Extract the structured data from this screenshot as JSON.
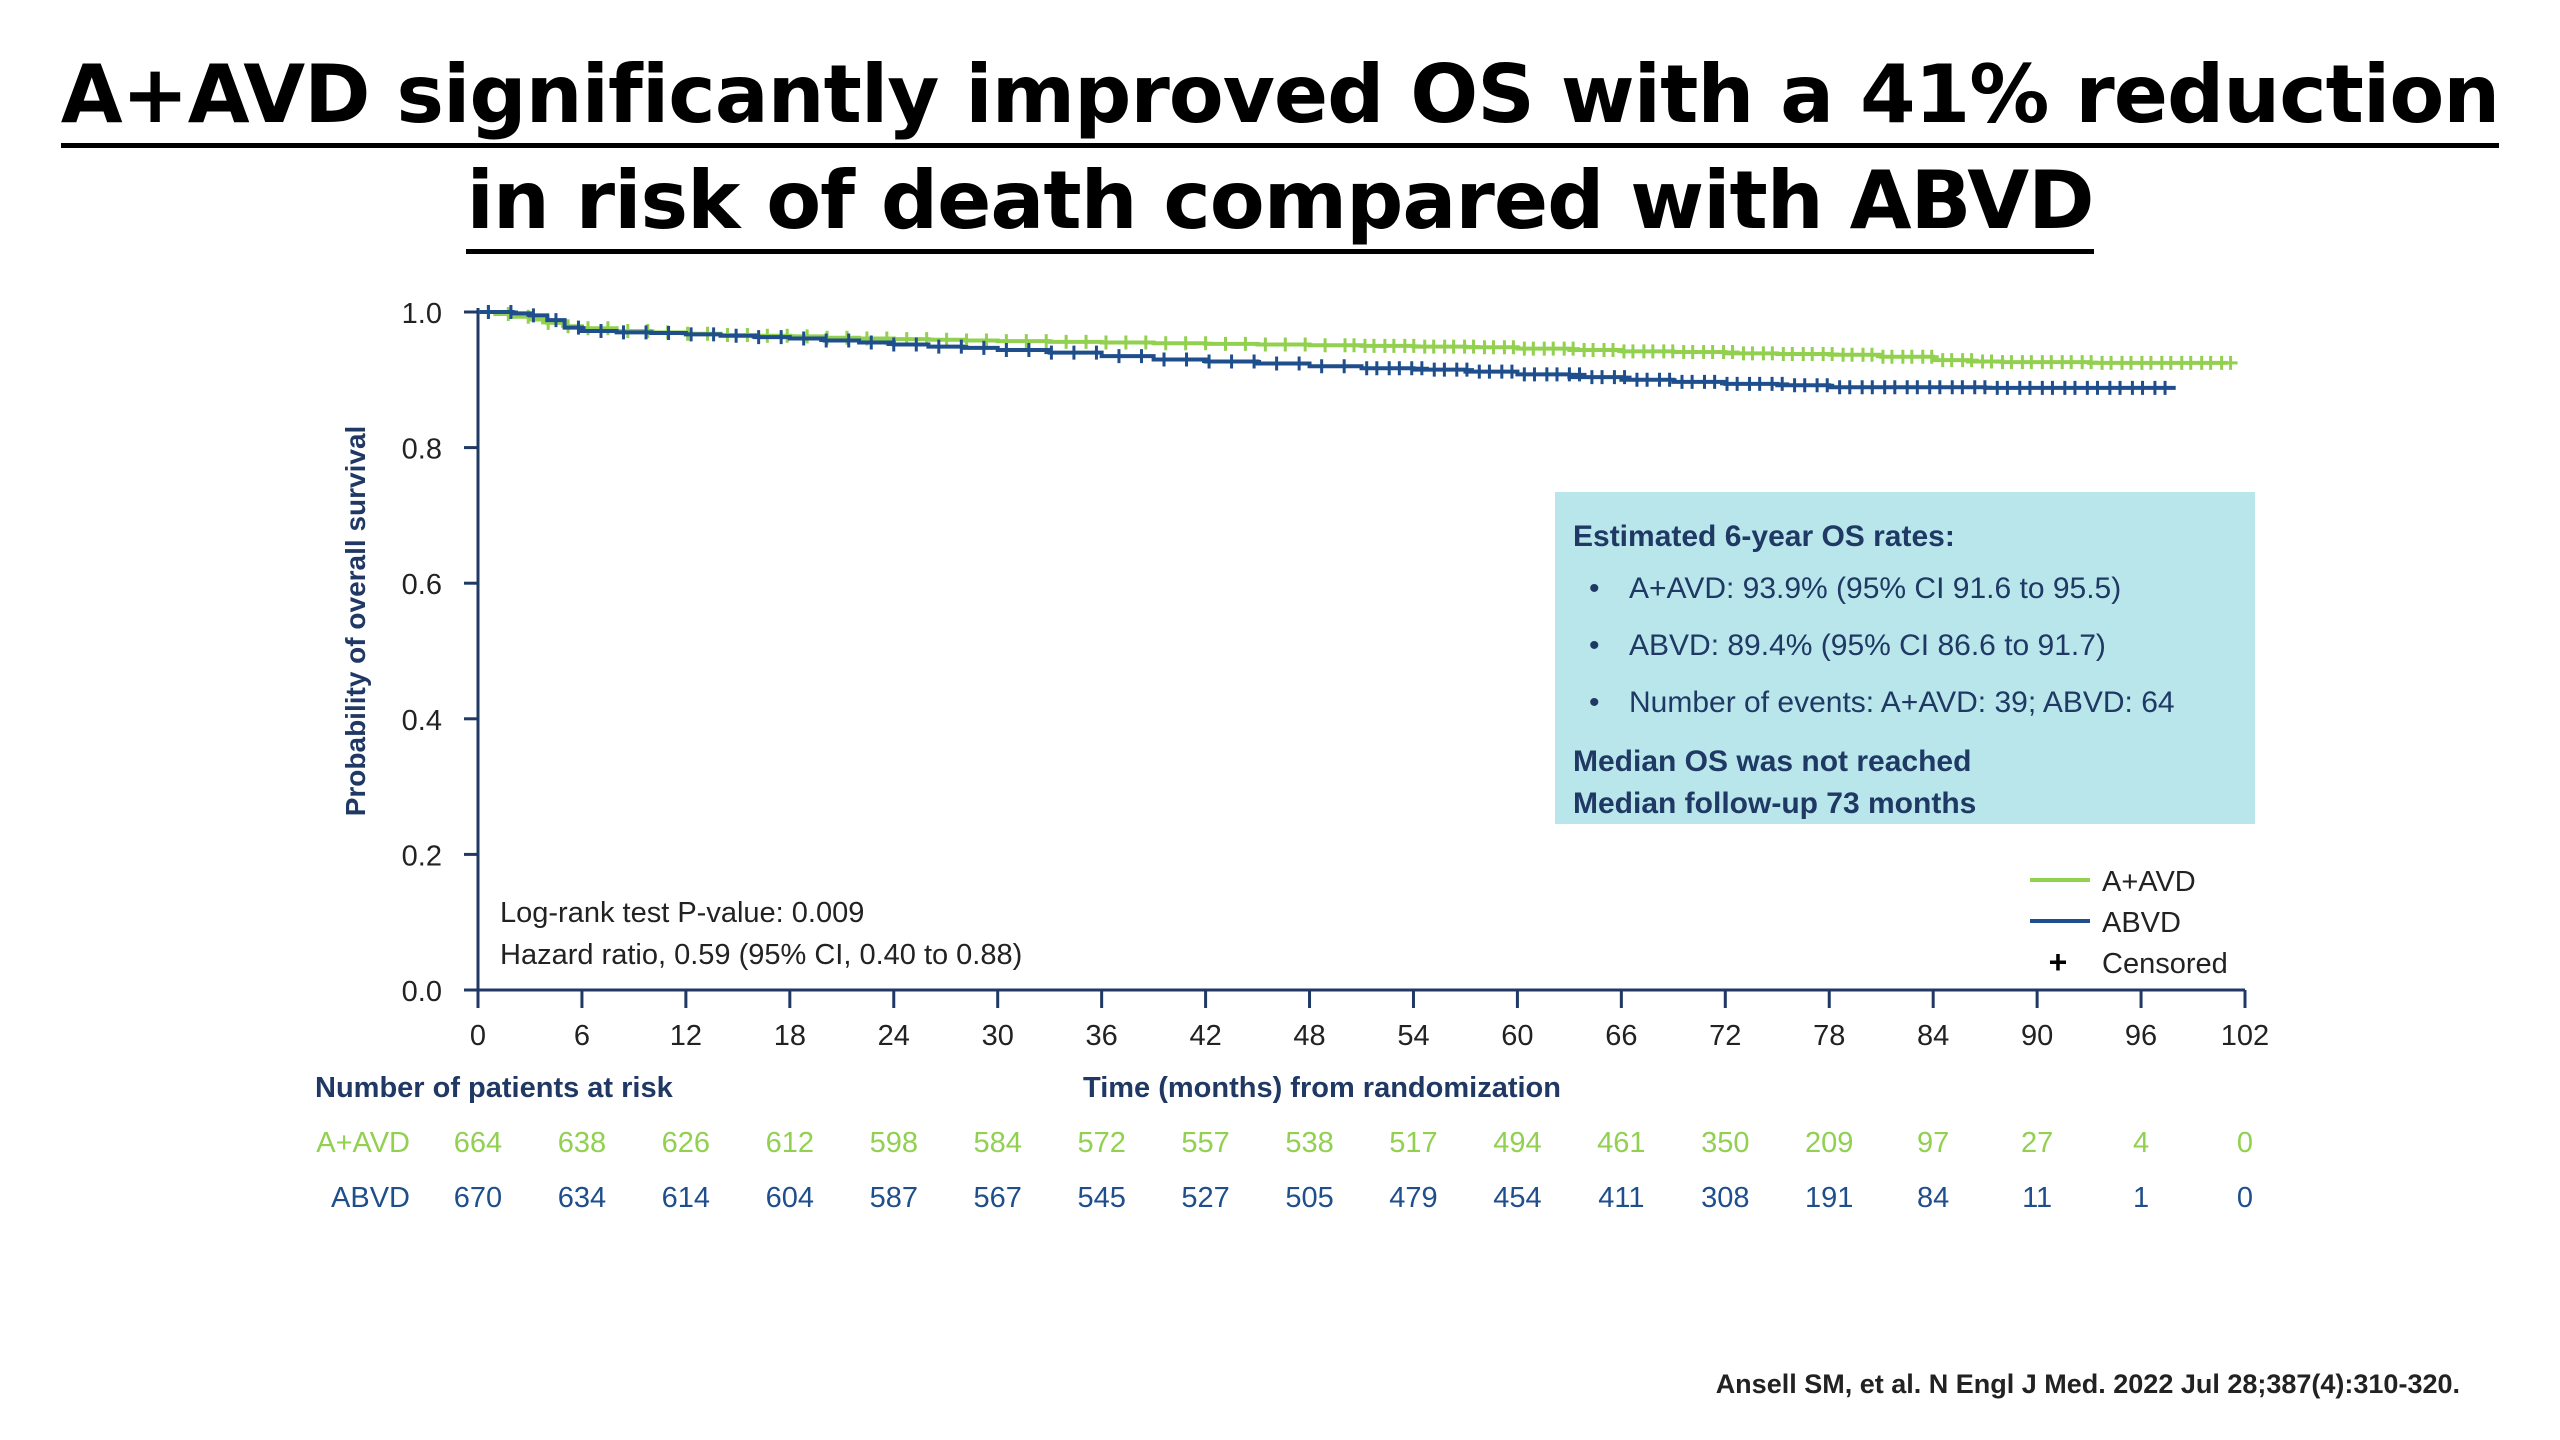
{
  "title": {
    "line1": "A+AVD significantly improved OS with a 41% reduction",
    "line2": "in risk of death compared with ABVD"
  },
  "chart_data": {
    "type": "line",
    "subtype": "kaplan-meier",
    "ylabel": "Probability of overall survival",
    "xlabel": "Time (months) from randomization",
    "ylim": [
      0.0,
      1.0
    ],
    "xlim": [
      0,
      102
    ],
    "yticks": [
      "0.0",
      "0.2",
      "0.4",
      "0.6",
      "0.8",
      "1.0"
    ],
    "xticks": [
      "0",
      "6",
      "12",
      "18",
      "24",
      "30",
      "36",
      "42",
      "48",
      "54",
      "60",
      "66",
      "72",
      "78",
      "84",
      "90",
      "96",
      "102"
    ],
    "series": [
      {
        "name": "A+AVD",
        "color": "#92d050",
        "points": [
          [
            0,
            1.0
          ],
          [
            1,
            0.997
          ],
          [
            2,
            0.993
          ],
          [
            3,
            0.989
          ],
          [
            4,
            0.984
          ],
          [
            5,
            0.979
          ],
          [
            6,
            0.976
          ],
          [
            8,
            0.972
          ],
          [
            10,
            0.97
          ],
          [
            12,
            0.968
          ],
          [
            14,
            0.966
          ],
          [
            16,
            0.965
          ],
          [
            18,
            0.964
          ],
          [
            20,
            0.962
          ],
          [
            22,
            0.961
          ],
          [
            24,
            0.96
          ],
          [
            26,
            0.959
          ],
          [
            28,
            0.958
          ],
          [
            30,
            0.957
          ],
          [
            33,
            0.956
          ],
          [
            36,
            0.955
          ],
          [
            39,
            0.954
          ],
          [
            42,
            0.953
          ],
          [
            45,
            0.952
          ],
          [
            48,
            0.951
          ],
          [
            51,
            0.95
          ],
          [
            54,
            0.949
          ],
          [
            57,
            0.948
          ],
          [
            60,
            0.946
          ],
          [
            63,
            0.944
          ],
          [
            66,
            0.942
          ],
          [
            69,
            0.941
          ],
          [
            72,
            0.939
          ],
          [
            75,
            0.938
          ],
          [
            78,
            0.937
          ],
          [
            81,
            0.934
          ],
          [
            84,
            0.929
          ],
          [
            86,
            0.927
          ],
          [
            88,
            0.926
          ],
          [
            90,
            0.926
          ],
          [
            93,
            0.925
          ],
          [
            96,
            0.925
          ],
          [
            101,
            0.925
          ]
        ]
      },
      {
        "name": "ABVD",
        "color": "#1f4e8c",
        "points": [
          [
            0,
            1.0
          ],
          [
            1,
            1.0
          ],
          [
            2,
            0.998
          ],
          [
            3,
            0.995
          ],
          [
            4,
            0.988
          ],
          [
            5,
            0.977
          ],
          [
            6,
            0.972
          ],
          [
            8,
            0.97
          ],
          [
            10,
            0.969
          ],
          [
            12,
            0.967
          ],
          [
            14,
            0.965
          ],
          [
            16,
            0.963
          ],
          [
            18,
            0.961
          ],
          [
            20,
            0.958
          ],
          [
            22,
            0.955
          ],
          [
            24,
            0.952
          ],
          [
            26,
            0.949
          ],
          [
            28,
            0.947
          ],
          [
            30,
            0.944
          ],
          [
            33,
            0.94
          ],
          [
            36,
            0.935
          ],
          [
            39,
            0.93
          ],
          [
            42,
            0.927
          ],
          [
            45,
            0.924
          ],
          [
            48,
            0.92
          ],
          [
            51,
            0.917
          ],
          [
            54,
            0.915
          ],
          [
            57,
            0.912
          ],
          [
            60,
            0.908
          ],
          [
            63,
            0.904
          ],
          [
            66,
            0.9
          ],
          [
            69,
            0.897
          ],
          [
            72,
            0.894
          ],
          [
            75,
            0.892
          ],
          [
            78,
            0.889
          ],
          [
            81,
            0.889
          ],
          [
            84,
            0.889
          ],
          [
            87,
            0.888
          ],
          [
            90,
            0.888
          ],
          [
            93,
            0.888
          ],
          [
            98,
            0.888
          ]
        ]
      }
    ],
    "legend": [
      {
        "label": "A+AVD",
        "color": "#92d050",
        "kind": "line"
      },
      {
        "label": "ABVD",
        "color": "#1f4e8c",
        "kind": "line"
      },
      {
        "label": "Censored",
        "color": "#000000",
        "kind": "cross",
        "glyph": "+"
      }
    ],
    "annotations": [
      "Log-rank test P-value: 0.009",
      "Hazard ratio, 0.59 (95% CI, 0.40 to 0.88)"
    ],
    "at_risk": {
      "title": "Number of patients at risk",
      "rows": [
        {
          "label": "A+AVD",
          "color": "#92d050",
          "values": [
            "664",
            "638",
            "626",
            "612",
            "598",
            "584",
            "572",
            "557",
            "538",
            "517",
            "494",
            "461",
            "350",
            "209",
            "97",
            "27",
            "4",
            "0"
          ]
        },
        {
          "label": "ABVD",
          "color": "#1f4e8c",
          "values": [
            "670",
            "634",
            "614",
            "604",
            "587",
            "567",
            "545",
            "527",
            "505",
            "479",
            "454",
            "411",
            "308",
            "191",
            "84",
            "11",
            "1",
            "0"
          ]
        }
      ]
    }
  },
  "infobox": {
    "header": "Estimated 6-year OS rates:",
    "bullets": [
      "A+AVD: 93.9% (95% CI 91.6 to 95.5)",
      "ABVD: 89.4% (95% CI 86.6 to 91.7)",
      "Number of events: A+AVD: 39; ABVD: 64"
    ],
    "footer1": "Median OS was not reached",
    "footer2": "Median follow-up 73 months"
  },
  "citation": "Ansell SM, et al. N Engl J Med. 2022 Jul 28;387(4):310-320."
}
